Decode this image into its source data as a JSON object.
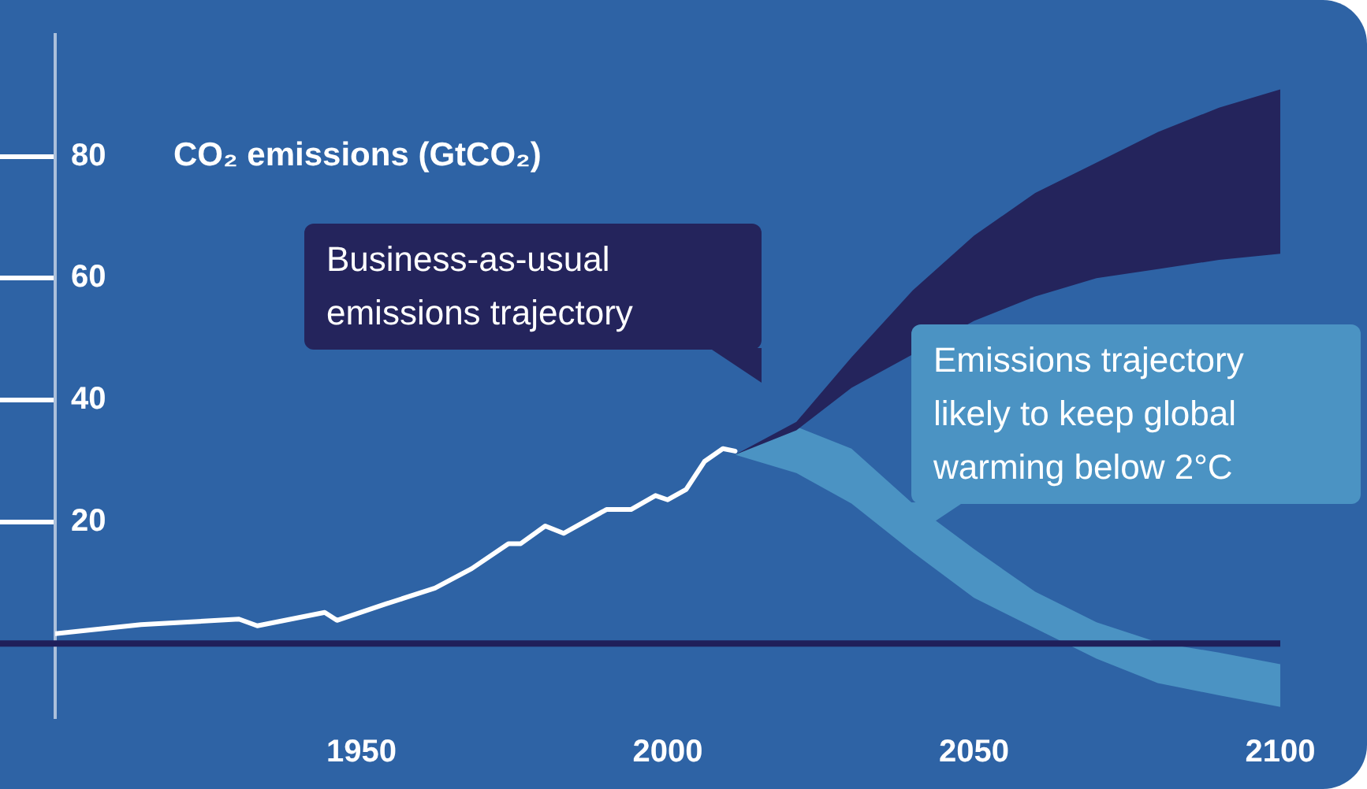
{
  "chart_data": {
    "type": "line",
    "ylabel": "CO₂ emissions (GtCO₂)",
    "xlim": [
      1900,
      2100
    ],
    "xticks": [
      1950,
      2000,
      2050,
      2100
    ],
    "ylim": [
      -12,
      100
    ],
    "yticks": [
      20,
      40,
      60,
      80
    ],
    "grid": false,
    "legend": false,
    "marker": "none",
    "line_style": "solid",
    "series": [
      {
        "color": "#ffffff",
        "x": [
          1900,
          1914,
          1930,
          1933,
          1944,
          1946,
          1954,
          1962,
          1968,
          1974,
          1976,
          1980,
          1983,
          1990,
          1994,
          1998,
          2000,
          2003,
          2006,
          2009,
          2011
        ],
        "values": [
          1.6,
          3.1,
          4,
          2.9,
          5.1,
          3.8,
          6.5,
          9.1,
          12.3,
          16.4,
          16.4,
          19.3,
          18.1,
          22,
          22,
          24.3,
          23.6,
          25.3,
          29.9,
          32,
          31.6
        ]
      },
      {
        "color": "#24245c",
        "x": [
          2011,
          2021,
          2030,
          2040,
          2050,
          2060,
          2070,
          2080,
          2090,
          2100
        ],
        "values": [
          null,
          null,
          null,
          null,
          null,
          null,
          null,
          null,
          null,
          null
        ],
        "lower": [
          31,
          35,
          42,
          47.5,
          53,
          57,
          60,
          61.5,
          63,
          64
        ],
        "upper": [
          31,
          36.4,
          47,
          58,
          67,
          74,
          79,
          84,
          88,
          91
        ]
      },
      {
        "color": "#4b93c3",
        "x": [
          2011,
          2021,
          2030,
          2040,
          2050,
          2060,
          2070,
          2080,
          2090,
          2100
        ],
        "values": [
          null,
          null,
          null,
          null,
          null,
          null,
          null,
          null,
          null,
          null
        ],
        "lower": [
          31,
          28,
          23,
          15,
          7.5,
          2.5,
          -2.5,
          -6.5,
          -8.5,
          -10.4
        ],
        "upper": [
          31,
          35.6,
          32,
          23,
          15.5,
          8.5,
          3.5,
          0.2,
          -1.5,
          -3.4
        ]
      }
    ],
    "ref_lines": [
      {
        "axis": "y",
        "value": 0,
        "color": "#1f1f5a"
      }
    ],
    "annotations": [
      "Business-as-usual emissions trajectory",
      "Emissions trajectory likely to keep global warming below 2°C"
    ]
  }
}
